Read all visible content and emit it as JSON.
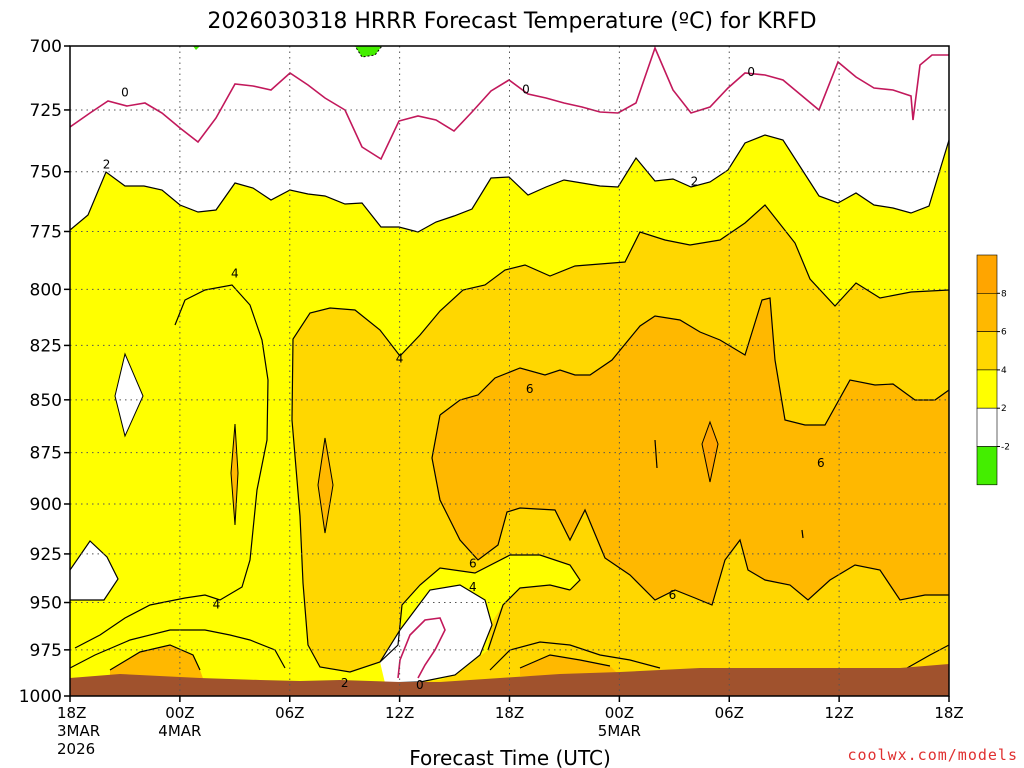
{
  "chart_data": {
    "type": "contour",
    "title": "2026030318 HRRR Forecast Temperature (ºC) for KRFD",
    "xlabel": "Forecast Time (UTC)",
    "ylabel": "",
    "credit": "coolwx.com/models",
    "y_ticks": [
      "700",
      "725",
      "750",
      "775",
      "800",
      "825",
      "850",
      "875",
      "900",
      "925",
      "950",
      "975",
      "1000"
    ],
    "x_ticks": [
      {
        "label": "18Z",
        "sub1": "3MAR",
        "sub2": "2026"
      },
      {
        "label": "00Z",
        "sub1": "4MAR",
        "sub2": ""
      },
      {
        "label": "06Z",
        "sub1": "",
        "sub2": ""
      },
      {
        "label": "12Z",
        "sub1": "",
        "sub2": ""
      },
      {
        "label": "18Z",
        "sub1": "",
        "sub2": ""
      },
      {
        "label": "00Z",
        "sub1": "5MAR",
        "sub2": ""
      },
      {
        "label": "06Z",
        "sub1": "",
        "sub2": ""
      },
      {
        "label": "12Z",
        "sub1": "",
        "sub2": ""
      },
      {
        "label": "18Z",
        "sub1": "",
        "sub2": ""
      }
    ],
    "x_range_hours": [
      0,
      48
    ],
    "y_range_hPa": [
      700,
      1000
    ],
    "y_scale": "log",
    "grid": true,
    "colorbar": {
      "ticks": [
        "8",
        "6",
        "4",
        "2",
        "-2"
      ],
      "bands": [
        {
          "from": 8,
          "to": 10,
          "color": "#ffa500"
        },
        {
          "from": 6,
          "to": 8,
          "color": "#ffb800"
        },
        {
          "from": 4,
          "to": 6,
          "color": "#ffd700"
        },
        {
          "from": 2,
          "to": 4,
          "color": "#ffff00"
        },
        {
          "from": -2,
          "to": 2,
          "color": "#ffffff"
        },
        {
          "from": -4,
          "to": -2,
          "color": "#44ee00"
        }
      ]
    },
    "contour_labels": [
      {
        "text": "0",
        "t": 3,
        "p": 718
      },
      {
        "text": "2",
        "t": 2,
        "p": 747
      },
      {
        "text": "4",
        "t": 9,
        "p": 793
      },
      {
        "text": "4",
        "t": 8,
        "p": 951
      },
      {
        "text": "4",
        "t": 18,
        "p": 831
      },
      {
        "text": "2",
        "t": 15,
        "p": 993
      },
      {
        "text": "0",
        "t": 24.9,
        "p": 717
      },
      {
        "text": "0",
        "t": 37.2,
        "p": 710
      },
      {
        "text": "2",
        "t": 34.1,
        "p": 754
      },
      {
        "text": "6",
        "t": 25.1,
        "p": 845
      },
      {
        "text": "6",
        "t": 22,
        "p": 930
      },
      {
        "text": "4",
        "t": 22,
        "p": 942
      },
      {
        "text": "6",
        "t": 32.9,
        "p": 946
      },
      {
        "text": "6",
        "t": 41,
        "p": 880
      },
      {
        "text": "0",
        "t": 19.1,
        "p": 994
      }
    ]
  }
}
